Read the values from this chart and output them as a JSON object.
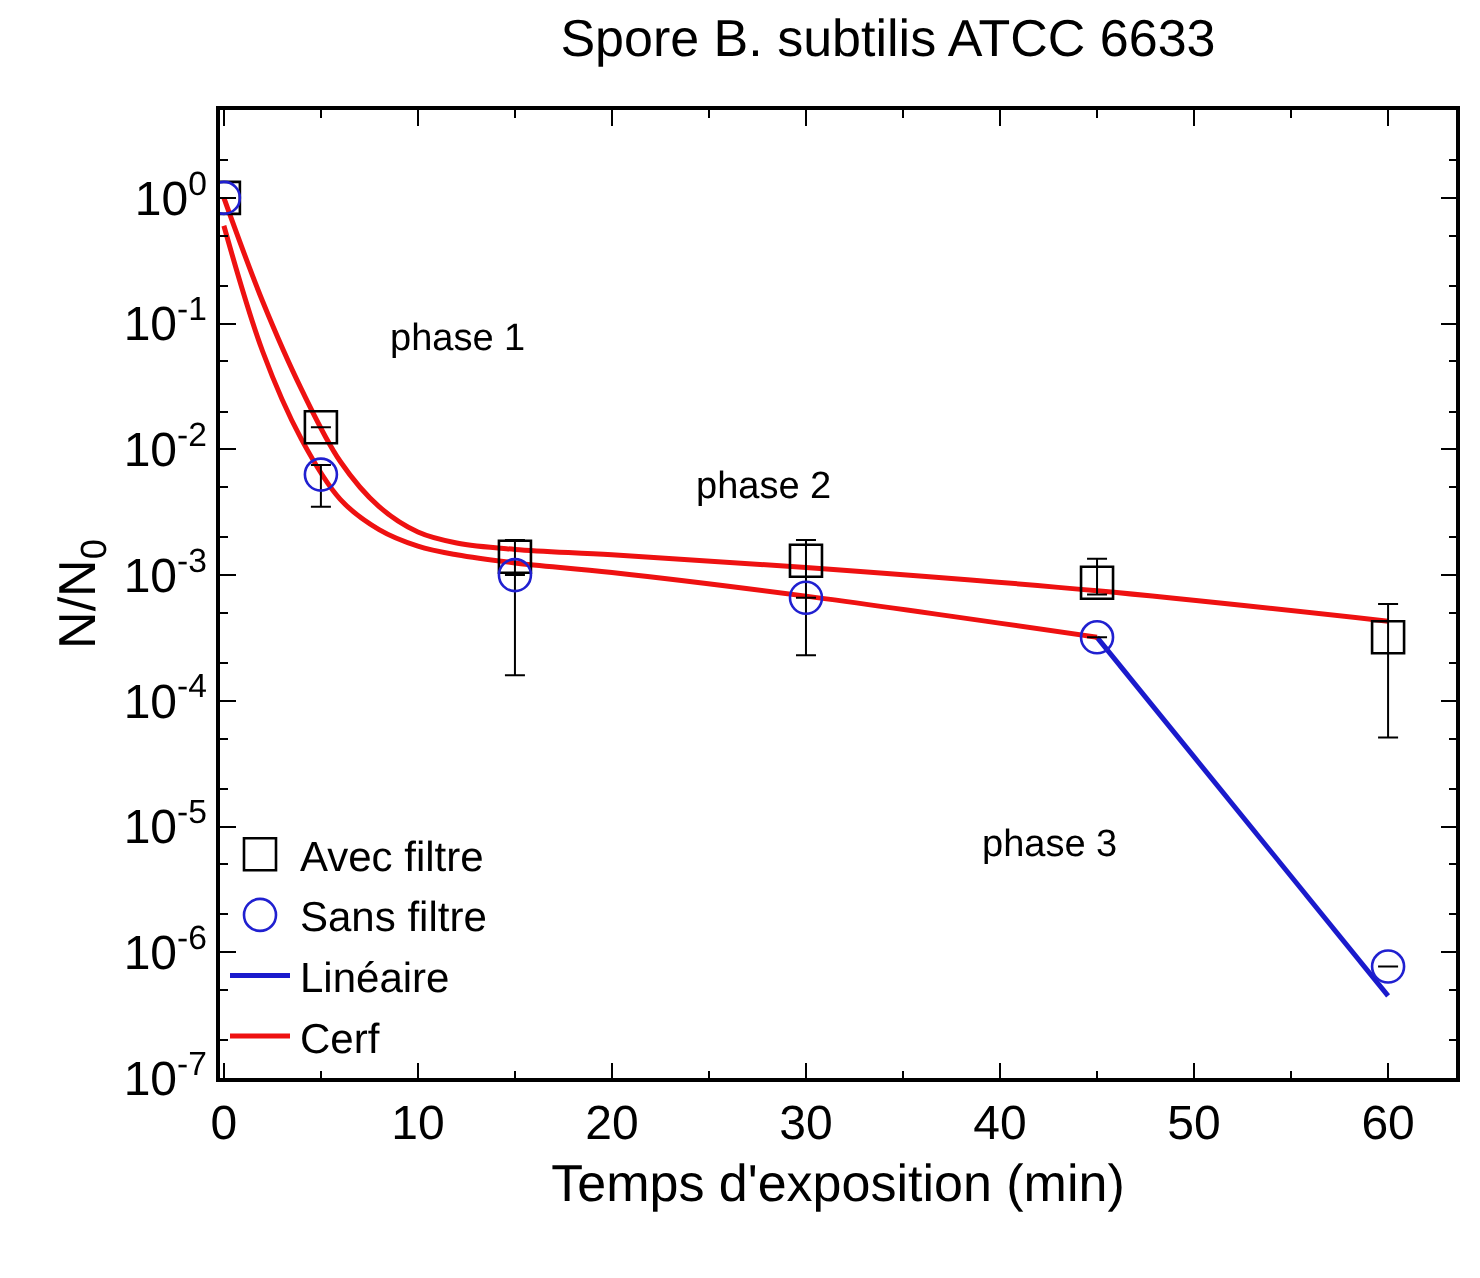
{
  "chart_data": {
    "type": "scatter",
    "title": "Spore B. subtilis ATCC 6633",
    "xlabel": "Temps d'exposition (min)",
    "ylabel": "N/N$_{0}$",
    "log": "y",
    "legend": "bottom left",
    "xlim": [
      -0.2,
      63.5
    ],
    "xticks": [
      0,
      10,
      20,
      30,
      40,
      50,
      60
    ],
    "ylim": [
      1e-07,
      5
    ],
    "yticks": [
      {
        "value": 1,
        "label": "10$^{0}$"
      },
      {
        "value": 0.1,
        "label": "10$^{-1}$"
      },
      {
        "value": 0.01,
        "label": "10$^{-2}$"
      },
      {
        "value": 0.001,
        "label": "10$^{-3}$"
      },
      {
        "value": 0.0001,
        "label": "10$^{-4}$"
      },
      {
        "value": 1e-05,
        "label": "10$^{-5}$"
      },
      {
        "value": 1e-06,
        "label": "10$^{-6}$"
      },
      {
        "value": 1e-07,
        "label": "10$^{-7}$"
      }
    ],
    "annotations": [
      "phase 1",
      "phase 2",
      "phase 3"
    ],
    "series": [
      {
        "name": "Avec filtre",
        "marker": "square",
        "color": "#000000",
        "x": [
          0,
          5,
          15,
          30,
          45,
          60
        ],
        "values": [
          1,
          0.015,
          0.0014,
          0.0013,
          0.00087,
          0.00032
        ],
        "errors": [
          null,
          null,
          [
            0.00016,
            0.0019
          ],
          [
            0.00023,
            0.0019
          ],
          [
            0.0007,
            0.00135
          ],
          [
            5.1e-05,
            0.00059
          ]
        ]
      },
      {
        "name": "Sans filtre",
        "marker": "circle",
        "color": "#2020d0",
        "x": [
          0,
          5,
          15,
          30,
          45,
          60
        ],
        "values": [
          1,
          0.0063,
          0.001,
          0.00066,
          0.00032,
          7.7e-07
        ],
        "errors": [
          null,
          [
            0.0035,
            0.0075
          ],
          null,
          null,
          null,
          null
        ]
      },
      {
        "name": "Linéaire",
        "type": "line",
        "color": "#1a1acc",
        "x": [
          45,
          60
        ],
        "values": [
          0.00032,
          4.5e-07
        ]
      },
      {
        "name": "Cerf",
        "type": "line",
        "color": "#ee1111",
        "x": [
          0,
          2,
          4,
          6,
          8,
          10,
          12,
          15,
          20,
          30,
          45,
          60
        ],
        "values": [
          1,
          0.15,
          0.03,
          0.008,
          0.0035,
          0.0022,
          0.0018,
          0.0016,
          0.00145,
          0.00115,
          0.00075,
          0.00043
        ]
      },
      {
        "type": "line",
        "color": "#ee1111",
        "x": [
          0,
          2,
          4,
          6,
          8,
          10,
          12,
          15,
          20,
          30,
          45
        ],
        "values": [
          0.6,
          0.06,
          0.012,
          0.004,
          0.0023,
          0.0017,
          0.00145,
          0.00125,
          0.00105,
          0.00068,
          0.00032
        ]
      }
    ]
  }
}
